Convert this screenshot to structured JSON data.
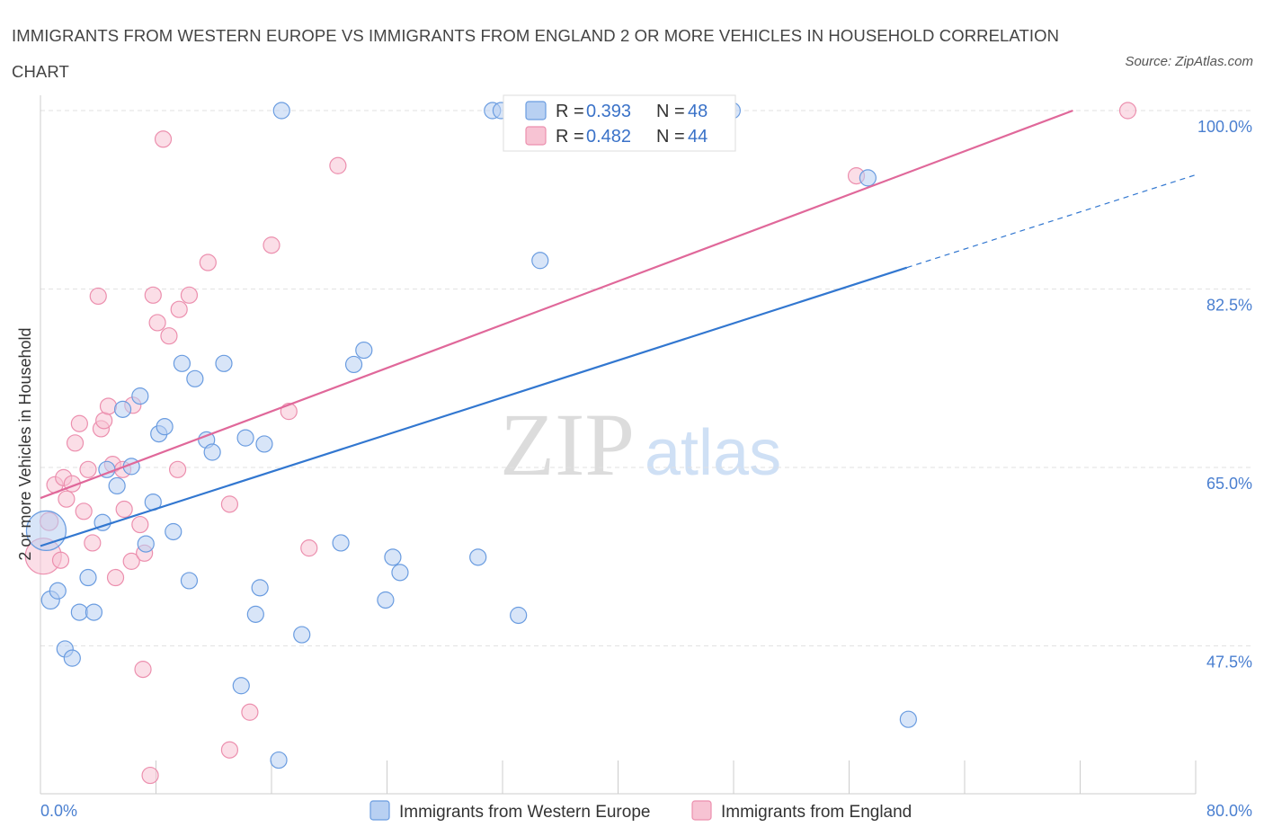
{
  "title": "IMMIGRANTS FROM WESTERN EUROPE VS IMMIGRANTS FROM ENGLAND 2 OR MORE VEHICLES IN HOUSEHOLD CORRELATION CHART",
  "source": "Source: ZipAtlas.com",
  "watermark": {
    "zip": "ZIP",
    "atlas": "atlas"
  },
  "colors": {
    "blue_fill": "#b8d0f2",
    "blue_stroke": "#6a9ce0",
    "blue_line": "#3277d0",
    "pink_fill": "#f7c3d3",
    "pink_stroke": "#ec8fae",
    "pink_line": "#e0689a",
    "tick_text": "#4a7fd0",
    "grid": "#e2e2e2"
  },
  "legend": {
    "rows": [
      {
        "r_label": "R = ",
        "r_value": "0.393",
        "n_label": "N = ",
        "n_value": "48"
      },
      {
        "r_label": "R = ",
        "r_value": "0.482",
        "n_label": "N = ",
        "n_value": "44"
      }
    ]
  },
  "chart_data": {
    "type": "scatter",
    "title": "IMMIGRANTS FROM WESTERN EUROPE VS IMMIGRANTS FROM ENGLAND 2 OR MORE VEHICLES IN HOUSEHOLD CORRELATION CHART",
    "xlabel": "",
    "ylabel": "2 or more Vehicles in Household",
    "xlim": [
      0,
      80
    ],
    "ylim": [
      33,
      101.5
    ],
    "x_tick_labels": [
      "0.0%",
      "80.0%"
    ],
    "y_ticks": [
      {
        "value": 100,
        "label": "100.0%"
      },
      {
        "value": 82.5,
        "label": "82.5%"
      },
      {
        "value": 65,
        "label": "65.0%"
      },
      {
        "value": 47.5,
        "label": "47.5%"
      }
    ],
    "series": [
      {
        "name": "Immigrants from Western Europe",
        "r": 0.393,
        "n": 48,
        "trend": {
          "x_start": 0,
          "y_start": 57.3,
          "x_end": 60,
          "y_end": 84.6,
          "dash_to_x": 80,
          "dash_to_y": 93.7
        },
        "points": [
          [
            0.4,
            58.8,
            22
          ],
          [
            0.7,
            52.0,
            10
          ],
          [
            1.2,
            52.9,
            9
          ],
          [
            1.7,
            47.2,
            9
          ],
          [
            2.2,
            46.3,
            9
          ],
          [
            2.7,
            50.8,
            9
          ],
          [
            3.3,
            54.2,
            9
          ],
          [
            3.7,
            50.8,
            9
          ],
          [
            4.3,
            59.6,
            9
          ],
          [
            4.6,
            64.8,
            9
          ],
          [
            5.3,
            63.2,
            9
          ],
          [
            5.7,
            70.7,
            9
          ],
          [
            6.3,
            65.1,
            9
          ],
          [
            6.9,
            72.0,
            9
          ],
          [
            7.3,
            57.5,
            9
          ],
          [
            7.8,
            61.6,
            9
          ],
          [
            8.2,
            68.3,
            9
          ],
          [
            8.6,
            69.0,
            9
          ],
          [
            9.2,
            58.7,
            9
          ],
          [
            9.8,
            75.2,
            9
          ],
          [
            10.3,
            53.9,
            9
          ],
          [
            10.7,
            73.7,
            9
          ],
          [
            11.5,
            67.7,
            9
          ],
          [
            11.9,
            66.5,
            9
          ],
          [
            12.7,
            75.2,
            9
          ],
          [
            13.9,
            43.6,
            9
          ],
          [
            14.2,
            67.9,
            9
          ],
          [
            15.5,
            67.3,
            9
          ],
          [
            14.9,
            50.6,
            9
          ],
          [
            15.2,
            53.2,
            9
          ],
          [
            16.5,
            36.3,
            9
          ],
          [
            16.7,
            100.0,
            9
          ],
          [
            18.1,
            48.6,
            9
          ],
          [
            20.8,
            57.6,
            9
          ],
          [
            21.7,
            75.1,
            9
          ],
          [
            22.4,
            76.5,
            9
          ],
          [
            23.9,
            52.0,
            9
          ],
          [
            24.4,
            56.2,
            9
          ],
          [
            24.9,
            54.7,
            9
          ],
          [
            30.3,
            56.2,
            9
          ],
          [
            31.3,
            100.0,
            9
          ],
          [
            31.9,
            100.0,
            9
          ],
          [
            33.1,
            50.5,
            9
          ],
          [
            34.6,
            85.3,
            9
          ],
          [
            47.9,
            100.0,
            9
          ],
          [
            57.3,
            93.4,
            9
          ],
          [
            60.1,
            40.3,
            9
          ]
        ]
      },
      {
        "name": "Immigrants from England",
        "r": 0.482,
        "n": 44,
        "trend": {
          "x_start": 0,
          "y_start": 62.0,
          "x_end": 71.5,
          "y_end": 100.0
        },
        "points": [
          [
            0.2,
            56.3,
            20
          ],
          [
            0.6,
            59.7,
            10
          ],
          [
            1.0,
            63.3,
            9
          ],
          [
            1.4,
            55.9,
            9
          ],
          [
            1.6,
            64.0,
            9
          ],
          [
            1.8,
            61.9,
            9
          ],
          [
            2.2,
            63.4,
            9
          ],
          [
            2.4,
            67.4,
            9
          ],
          [
            2.7,
            69.3,
            9
          ],
          [
            3.0,
            60.7,
            9
          ],
          [
            3.3,
            64.8,
            9
          ],
          [
            3.6,
            57.6,
            9
          ],
          [
            4.0,
            81.8,
            9
          ],
          [
            4.2,
            68.8,
            9
          ],
          [
            4.4,
            69.6,
            9
          ],
          [
            4.7,
            71.0,
            9
          ],
          [
            5.0,
            65.3,
            9
          ],
          [
            5.2,
            54.2,
            9
          ],
          [
            5.7,
            64.8,
            9
          ],
          [
            5.8,
            60.9,
            9
          ],
          [
            6.3,
            55.8,
            9
          ],
          [
            6.4,
            71.1,
            9
          ],
          [
            6.9,
            59.4,
            9
          ],
          [
            7.1,
            45.2,
            9
          ],
          [
            7.2,
            56.6,
            9
          ],
          [
            7.6,
            34.8,
            9
          ],
          [
            7.8,
            81.9,
            9
          ],
          [
            8.1,
            79.2,
            9
          ],
          [
            8.5,
            97.2,
            9
          ],
          [
            8.9,
            77.9,
            9
          ],
          [
            9.5,
            64.8,
            9
          ],
          [
            9.6,
            80.5,
            9
          ],
          [
            10.3,
            81.9,
            9
          ],
          [
            11.6,
            85.1,
            9
          ],
          [
            13.1,
            37.3,
            9
          ],
          [
            13.1,
            61.4,
            9
          ],
          [
            14.5,
            41.0,
            9
          ],
          [
            16.0,
            86.8,
            9
          ],
          [
            17.2,
            70.5,
            9
          ],
          [
            18.6,
            57.1,
            9
          ],
          [
            20.6,
            94.6,
            9
          ],
          [
            56.5,
            93.6,
            9
          ],
          [
            75.3,
            100.0,
            9
          ]
        ]
      }
    ]
  }
}
